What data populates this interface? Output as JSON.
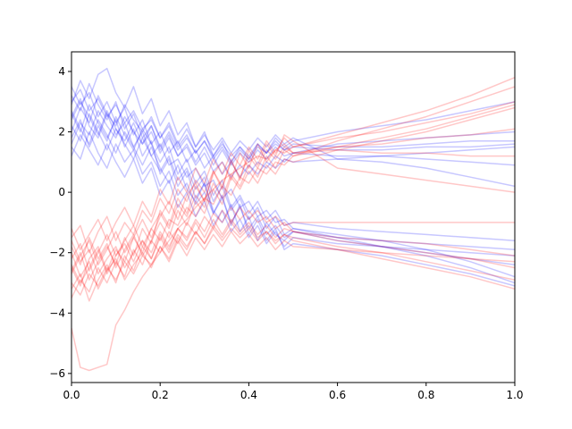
{
  "chart_data": {
    "type": "line",
    "title": "",
    "xlabel": "",
    "ylabel": "",
    "xlim": [
      0,
      1
    ],
    "ylim": [
      -6.3,
      4.65
    ],
    "grid": false,
    "legend": "none",
    "x_ticks": [
      {
        "value": 0.0,
        "label": "0.0"
      },
      {
        "value": 0.2,
        "label": "0.2"
      },
      {
        "value": 0.4,
        "label": "0.4"
      },
      {
        "value": 0.6,
        "label": "0.6"
      },
      {
        "value": 0.8,
        "label": "0.8"
      },
      {
        "value": 1.0,
        "label": "1.0"
      }
    ],
    "y_ticks": [
      {
        "value": 4,
        "label": "4"
      },
      {
        "value": 2,
        "label": "2"
      },
      {
        "value": 0,
        "label": "0"
      },
      {
        "value": -2,
        "label": "−2"
      },
      {
        "value": -4,
        "label": "−4"
      },
      {
        "value": -6,
        "label": "−6"
      }
    ],
    "line_alpha": 0.22,
    "noisy_x": [
      0.0,
      0.02,
      0.04,
      0.06,
      0.08,
      0.1,
      0.12,
      0.14,
      0.16,
      0.18,
      0.2,
      0.22,
      0.24,
      0.26,
      0.28,
      0.3,
      0.32,
      0.34,
      0.36,
      0.38,
      0.4,
      0.42,
      0.44,
      0.46,
      0.48,
      0.5
    ],
    "smooth_x": [
      0.5,
      0.6,
      0.7,
      0.8,
      0.9,
      1.0
    ],
    "series": [
      {
        "color": "#0000ff",
        "noisy": [
          2.5,
          3.1,
          2.2,
          1.8,
          2.6,
          1.9,
          2.3,
          1.5,
          2.0,
          1.2,
          1.6,
          0.9,
          1.1,
          0.5,
          0.8,
          0.2,
          0.4,
          -0.2,
          0.1,
          -0.5,
          -0.3,
          -0.8,
          -0.6,
          -1.0,
          -0.9,
          -1.2
        ],
        "smooth": [
          -1.3,
          -1.5,
          -1.8,
          -2.1,
          -2.5,
          -3.0
        ]
      },
      {
        "color": "#0000ff",
        "noisy": [
          3.2,
          2.7,
          3.6,
          2.9,
          2.4,
          3.0,
          2.1,
          2.6,
          1.8,
          2.2,
          1.4,
          1.9,
          1.2,
          1.5,
          0.9,
          1.3,
          0.7,
          1.0,
          0.5,
          0.9,
          0.6,
          1.0,
          0.8,
          1.2,
          1.0,
          1.3
        ],
        "smooth": [
          1.5,
          1.6,
          1.7,
          1.8,
          1.9,
          2.0
        ]
      },
      {
        "color": "#0000ff",
        "noisy": [
          1.8,
          2.4,
          1.5,
          2.2,
          1.7,
          2.5,
          1.9,
          1.4,
          2.1,
          1.6,
          1.0,
          1.5,
          0.6,
          1.1,
          0.3,
          0.7,
          -0.1,
          0.4,
          -0.5,
          -0.1,
          -0.7,
          -0.3,
          -0.9,
          -0.6,
          -1.1,
          -1.0
        ],
        "smooth": [
          -1.1,
          -1.2,
          -1.3,
          -1.4,
          -1.5,
          -1.6
        ]
      },
      {
        "color": "#0000ff",
        "noisy": [
          2.9,
          3.7,
          3.1,
          3.9,
          4.1,
          3.3,
          2.8,
          3.5,
          2.6,
          3.1,
          2.2,
          2.7,
          1.9,
          2.3,
          1.5,
          2.0,
          1.2,
          1.7,
          1.0,
          1.5,
          1.1,
          1.6,
          1.3,
          1.8,
          1.5,
          1.7
        ],
        "smooth": [
          1.8,
          2.0,
          2.2,
          2.4,
          2.7,
          3.0
        ]
      },
      {
        "color": "#0000ff",
        "noisy": [
          1.5,
          1.1,
          2.0,
          1.3,
          0.8,
          1.6,
          1.0,
          1.4,
          0.6,
          1.0,
          0.2,
          0.7,
          -0.1,
          0.3,
          -0.4,
          0.0,
          -0.7,
          -0.2,
          -1.0,
          -0.5,
          -1.2,
          -0.8,
          -1.4,
          -1.1,
          -1.5,
          -1.3
        ],
        "smooth": [
          -1.4,
          -1.6,
          -1.8,
          -2.0,
          -2.2,
          -2.4
        ]
      },
      {
        "color": "#0000ff",
        "noisy": [
          3.5,
          2.9,
          3.3,
          2.5,
          3.0,
          2.3,
          2.8,
          1.9,
          2.4,
          1.6,
          2.0,
          1.3,
          1.7,
          1.0,
          1.4,
          0.8,
          1.2,
          0.6,
          1.0,
          0.5,
          0.9,
          0.6,
          1.0,
          0.8,
          1.1,
          1.0
        ],
        "smooth": [
          1.0,
          1.1,
          1.2,
          1.3,
          1.4,
          1.5
        ]
      },
      {
        "color": "#0000ff",
        "noisy": [
          2.2,
          1.7,
          2.6,
          2.0,
          1.4,
          2.1,
          1.6,
          1.1,
          1.8,
          1.2,
          0.7,
          1.2,
          0.4,
          0.8,
          0.1,
          0.5,
          -0.3,
          0.2,
          -0.6,
          -0.2,
          -0.9,
          -0.5,
          -1.2,
          -0.8,
          -1.4,
          -1.2
        ],
        "smooth": [
          -1.3,
          -1.4,
          -1.6,
          -1.9,
          -2.3,
          -2.8
        ]
      },
      {
        "color": "#0000ff",
        "noisy": [
          2.0,
          2.8,
          2.3,
          3.2,
          2.6,
          2.2,
          2.9,
          2.4,
          2.0,
          2.5,
          1.8,
          2.3,
          1.6,
          2.1,
          1.5,
          1.9,
          1.4,
          1.8,
          1.3,
          1.7,
          1.4,
          1.8,
          1.5,
          1.9,
          1.6,
          1.8
        ],
        "smooth": [
          1.2,
          1.1,
          1.0,
          0.8,
          0.5,
          0.2
        ]
      },
      {
        "color": "#0000ff",
        "noisy": [
          2.7,
          2.1,
          1.6,
          2.4,
          1.9,
          1.3,
          2.0,
          1.5,
          0.9,
          1.5,
          0.8,
          0.3,
          0.9,
          0.1,
          -0.3,
          0.3,
          -0.6,
          -1.0,
          -0.4,
          -1.3,
          -0.8,
          -1.6,
          -1.0,
          -1.4,
          -1.6,
          -1.3
        ],
        "smooth": [
          -1.4,
          -1.5,
          -1.6,
          -1.7,
          -1.8,
          -1.9
        ]
      },
      {
        "color": "#0000ff",
        "noisy": [
          3.0,
          3.4,
          2.7,
          3.1,
          2.5,
          2.9,
          2.3,
          2.7,
          2.1,
          2.4,
          1.8,
          2.2,
          1.5,
          1.9,
          1.3,
          1.7,
          1.1,
          1.5,
          1.0,
          1.4,
          1.1,
          1.5,
          1.3,
          1.6,
          1.4,
          1.5
        ],
        "smooth": [
          1.3,
          1.4,
          1.4,
          1.5,
          1.5,
          1.6
        ]
      },
      {
        "color": "#0000ff",
        "noisy": [
          1.2,
          1.9,
          1.4,
          0.9,
          1.6,
          1.0,
          0.5,
          1.1,
          0.3,
          0.8,
          -0.1,
          0.4,
          -0.5,
          0.0,
          -0.8,
          -0.3,
          -1.1,
          -0.6,
          -1.3,
          -0.9,
          -1.5,
          -1.1,
          -1.7,
          -1.3,
          -1.8,
          -1.5
        ],
        "smooth": [
          -1.6,
          -1.7,
          -1.8,
          -1.9,
          -2.0,
          -2.1
        ]
      },
      {
        "color": "#0000ff",
        "noisy": [
          2.4,
          3.0,
          2.5,
          1.9,
          2.7,
          2.1,
          1.7,
          2.3,
          1.6,
          2.0,
          1.3,
          1.8,
          1.2,
          1.6,
          1.0,
          1.5,
          0.9,
          1.4,
          0.9,
          1.3,
          1.0,
          1.4,
          1.1,
          1.5,
          1.2,
          1.3
        ],
        "smooth": [
          1.3,
          1.2,
          1.2,
          1.1,
          1.0,
          0.9
        ]
      },
      {
        "color": "#0000ff",
        "noisy": [
          2.6,
          2.0,
          2.9,
          2.3,
          1.8,
          2.4,
          1.5,
          2.1,
          1.2,
          1.7,
          0.6,
          1.1,
          0.2,
          0.7,
          -0.2,
          0.3,
          -0.7,
          -0.1,
          -1.1,
          -0.4,
          -1.4,
          -0.9,
          -1.6,
          -1.2,
          -1.9,
          -1.7
        ],
        "smooth": [
          -1.7,
          -1.9,
          -2.1,
          -2.4,
          -2.7,
          -3.1
        ]
      },
      {
        "color": "#0000ff",
        "noisy": [
          1.6,
          2.3,
          1.9,
          2.7,
          2.2,
          1.8,
          2.5,
          2.0,
          1.6,
          2.2,
          1.5,
          2.0,
          1.4,
          1.8,
          1.3,
          1.7,
          1.2,
          1.6,
          1.2,
          1.5,
          1.2,
          1.6,
          1.3,
          1.7,
          1.4,
          1.6
        ],
        "smooth": [
          1.4,
          1.5,
          1.5,
          1.6,
          1.7,
          1.7
        ]
      },
      {
        "color": "#ff0000",
        "noisy": [
          -2.5,
          -3.1,
          -2.2,
          -1.8,
          -2.6,
          -1.9,
          -2.3,
          -1.5,
          -2.0,
          -1.2,
          -1.6,
          -0.9,
          -1.1,
          -0.5,
          -0.8,
          -0.2,
          -0.4,
          0.2,
          -0.1,
          0.5,
          0.3,
          0.8,
          0.6,
          1.0,
          0.9,
          1.2
        ],
        "smooth": [
          1.4,
          1.7,
          2.1,
          2.5,
          3.0,
          3.5
        ]
      },
      {
        "color": "#ff0000",
        "noisy": [
          -3.2,
          -2.7,
          -3.6,
          -2.9,
          -2.4,
          -3.0,
          -2.1,
          -2.6,
          -1.8,
          -2.2,
          -1.4,
          -1.9,
          -1.2,
          -1.5,
          -0.9,
          -1.3,
          -0.7,
          -1.0,
          -0.5,
          -0.9,
          -0.6,
          -1.0,
          -0.8,
          -1.2,
          -1.0,
          -1.3
        ],
        "smooth": [
          -1.4,
          -1.6,
          -1.8,
          -2.0,
          -2.2,
          -2.5
        ]
      },
      {
        "color": "#ff0000",
        "noisy": [
          -1.8,
          -2.4,
          -1.5,
          -2.2,
          -1.7,
          -2.5,
          -1.9,
          -1.4,
          -2.1,
          -1.6,
          -1.0,
          -1.5,
          -0.6,
          -1.1,
          -0.3,
          -0.7,
          0.1,
          -0.4,
          0.5,
          0.1,
          0.7,
          0.3,
          0.9,
          0.6,
          1.1,
          1.0
        ],
        "smooth": [
          1.2,
          1.4,
          1.7,
          2.0,
          2.4,
          2.8
        ]
      },
      {
        "color": "#ff0000",
        "noisy": [
          -4.5,
          -5.8,
          -5.9,
          -5.8,
          -5.7,
          -4.4,
          -3.9,
          -3.3,
          -2.8,
          -2.4,
          -2.0,
          -1.6,
          -1.2,
          -0.9,
          -0.5,
          -0.2,
          0.1,
          0.4,
          0.6,
          0.8,
          1.0,
          1.2,
          1.1,
          1.4,
          1.3,
          1.5
        ],
        "smooth": [
          1.6,
          1.9,
          2.3,
          2.7,
          3.2,
          3.8
        ]
      },
      {
        "color": "#ff0000",
        "noisy": [
          -1.5,
          -1.1,
          -2.0,
          -1.3,
          -0.8,
          -1.6,
          -1.0,
          -1.4,
          -0.6,
          -1.0,
          -0.2,
          -0.7,
          0.1,
          -0.3,
          0.4,
          0.0,
          0.7,
          0.2,
          1.0,
          0.5,
          1.2,
          0.8,
          1.4,
          1.1,
          1.5,
          1.3
        ],
        "smooth": [
          1.4,
          1.5,
          1.6,
          1.8,
          1.9,
          2.1
        ]
      },
      {
        "color": "#ff0000",
        "noisy": [
          -3.5,
          -2.9,
          -3.3,
          -2.5,
          -3.0,
          -2.3,
          -2.8,
          -1.9,
          -2.4,
          -1.6,
          -2.0,
          -1.3,
          -1.7,
          -1.0,
          -1.4,
          -0.8,
          -1.2,
          -0.6,
          -1.0,
          -0.5,
          -0.9,
          -0.6,
          -1.0,
          -0.8,
          -1.1,
          -1.0
        ],
        "smooth": [
          -1.1,
          -1.0,
          -1.0,
          -1.0,
          -1.0,
          -1.0
        ]
      },
      {
        "color": "#ff0000",
        "noisy": [
          -2.2,
          -1.7,
          -2.6,
          -2.0,
          -1.4,
          -2.1,
          -1.6,
          -1.1,
          -1.8,
          -1.2,
          -0.7,
          -1.2,
          -0.4,
          -0.8,
          -0.1,
          -0.5,
          0.3,
          -0.2,
          0.6,
          0.2,
          0.9,
          0.5,
          1.2,
          0.8,
          1.4,
          1.2
        ],
        "smooth": [
          1.3,
          1.5,
          1.8,
          2.1,
          2.5,
          2.9
        ]
      },
      {
        "color": "#ff0000",
        "noisy": [
          -2.0,
          -2.8,
          -2.3,
          -3.2,
          -2.6,
          -2.2,
          -2.9,
          -2.4,
          -2.0,
          -2.5,
          -1.8,
          -2.3,
          -1.6,
          -2.1,
          -1.5,
          -1.9,
          -1.4,
          -1.8,
          -1.3,
          -1.7,
          -1.4,
          -1.8,
          -1.5,
          -1.9,
          -1.6,
          -1.8
        ],
        "smooth": [
          -1.8,
          -1.9,
          -2.0,
          -2.1,
          -2.2,
          -2.3
        ]
      },
      {
        "color": "#ff0000",
        "noisy": [
          -2.7,
          -2.1,
          -1.6,
          -2.4,
          -1.9,
          -1.3,
          -2.0,
          -1.5,
          -0.9,
          -1.5,
          -0.8,
          -0.3,
          -0.9,
          -0.1,
          0.3,
          -0.3,
          0.6,
          1.0,
          0.4,
          1.3,
          0.8,
          1.6,
          1.0,
          1.4,
          1.6,
          1.3
        ],
        "smooth": [
          1.4,
          1.4,
          1.3,
          1.3,
          1.2,
          1.2
        ]
      },
      {
        "color": "#ff0000",
        "noisy": [
          -3.0,
          -3.4,
          -2.7,
          -3.1,
          -2.5,
          -2.9,
          -2.3,
          -2.7,
          -2.1,
          -2.4,
          -1.8,
          -2.2,
          -1.5,
          -1.9,
          -1.3,
          -1.7,
          -1.1,
          -1.5,
          -1.0,
          -1.4,
          -1.1,
          -1.5,
          -1.3,
          -1.6,
          -1.4,
          -1.5
        ],
        "smooth": [
          -1.6,
          -1.8,
          -2.0,
          -2.3,
          -2.6,
          -2.9
        ]
      },
      {
        "color": "#ff0000",
        "noisy": [
          -1.2,
          -1.9,
          -1.4,
          -0.9,
          -1.6,
          -1.0,
          -0.5,
          -1.1,
          -0.3,
          -0.8,
          0.1,
          -0.4,
          0.5,
          0.0,
          0.8,
          0.3,
          1.1,
          0.6,
          1.3,
          0.9,
          1.5,
          1.1,
          1.7,
          1.3,
          1.8,
          1.5
        ],
        "smooth": [
          1.6,
          1.8,
          2.0,
          2.3,
          2.6,
          3.0
        ]
      },
      {
        "color": "#ff0000",
        "noisy": [
          -2.4,
          -3.0,
          -2.5,
          -1.9,
          -2.7,
          -2.1,
          -1.7,
          -2.3,
          -1.6,
          -2.0,
          -1.3,
          -1.8,
          -1.2,
          -1.6,
          -1.0,
          -1.5,
          -0.9,
          -1.4,
          -0.9,
          -1.3,
          -1.0,
          -1.4,
          -1.1,
          -1.5,
          -1.2,
          -1.3
        ],
        "smooth": [
          -1.4,
          -1.5,
          -1.6,
          -1.7,
          -1.9,
          -2.1
        ]
      },
      {
        "color": "#ff0000",
        "noisy": [
          -2.6,
          -2.0,
          -2.9,
          -2.3,
          -1.8,
          -2.4,
          -1.5,
          -2.1,
          -1.2,
          -1.7,
          -0.6,
          -1.1,
          -0.2,
          -0.7,
          0.2,
          -0.3,
          0.7,
          0.1,
          1.1,
          0.4,
          1.4,
          0.9,
          1.6,
          1.2,
          1.9,
          1.7
        ],
        "smooth": [
          1.0,
          0.8,
          0.6,
          0.4,
          0.2,
          0.0
        ]
      },
      {
        "color": "#ff0000",
        "noisy": [
          -1.6,
          -2.3,
          -1.9,
          -2.7,
          -2.2,
          -1.8,
          -2.5,
          -2.0,
          -1.6,
          -2.2,
          -1.5,
          -2.0,
          -1.4,
          -1.8,
          -1.3,
          -1.7,
          -1.2,
          -1.6,
          -1.2,
          -1.5,
          -1.2,
          -1.6,
          -1.3,
          -1.7,
          -1.4,
          -1.6
        ],
        "smooth": [
          -1.7,
          -1.9,
          -2.2,
          -2.5,
          -2.8,
          -3.2
        ]
      }
    ]
  }
}
